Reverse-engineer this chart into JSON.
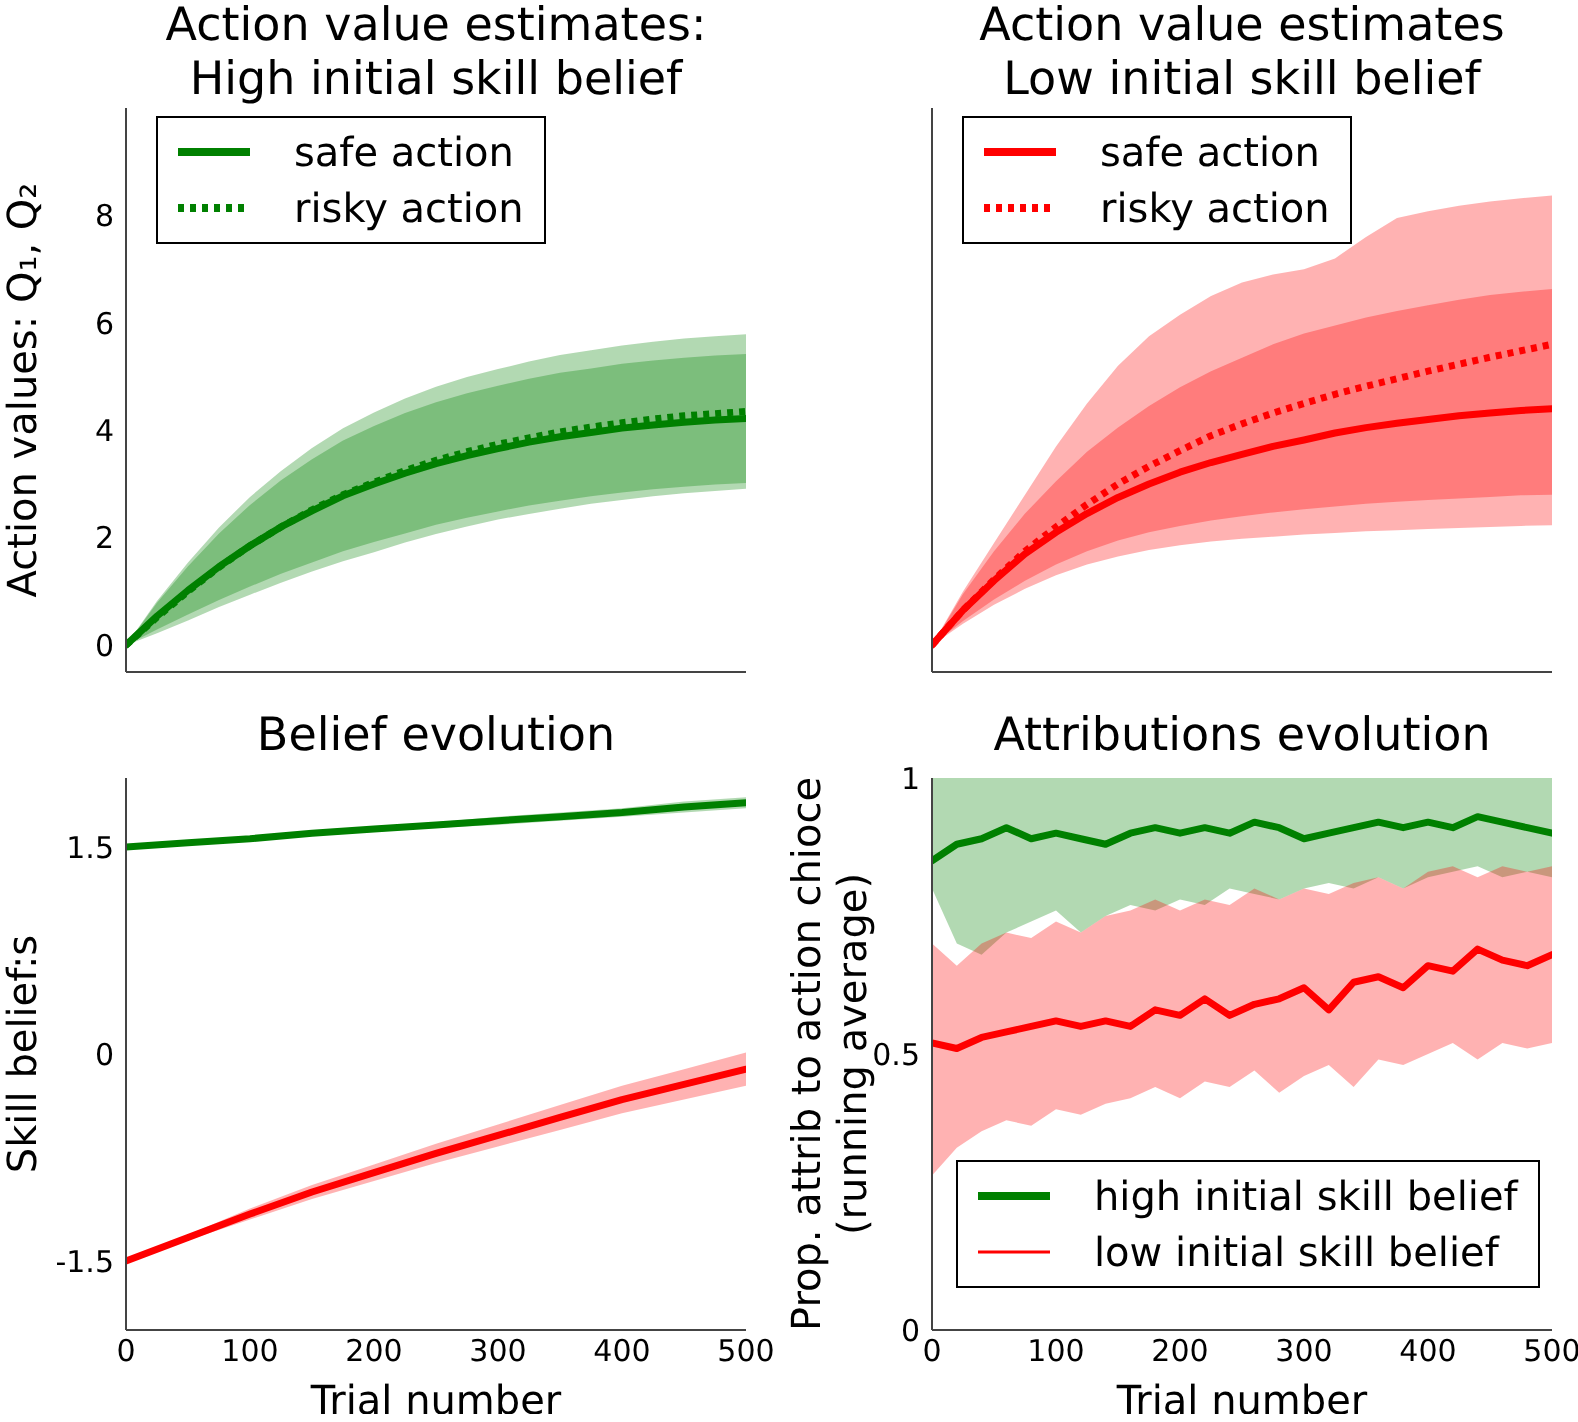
{
  "chart_data": [
    {
      "type": "line",
      "title": "Action value estimates:\nHigh initial skill belief",
      "ylabel": "Action values: Q₁, Q₂",
      "x": [
        0,
        25,
        50,
        75,
        100,
        125,
        150,
        175,
        200,
        225,
        250,
        275,
        300,
        325,
        350,
        375,
        400,
        425,
        450,
        475,
        500
      ],
      "xlim": [
        0,
        500
      ],
      "ylim": [
        -0.5,
        10
      ],
      "yticks": [
        0,
        2,
        4,
        6,
        8
      ],
      "tick_labels": "y",
      "legend": "top left",
      "series": [
        {
          "name": "safe action",
          "color": "#008000",
          "line_style": "solid",
          "values": [
            0,
            0.54,
            1.02,
            1.46,
            1.85,
            2.2,
            2.5,
            2.78,
            3.0,
            3.2,
            3.38,
            3.53,
            3.66,
            3.78,
            3.88,
            3.96,
            4.04,
            4.1,
            4.15,
            4.19,
            4.22
          ],
          "lower": [
            0,
            0.29,
            0.57,
            0.84,
            1.09,
            1.33,
            1.54,
            1.75,
            1.92,
            2.08,
            2.24,
            2.37,
            2.49,
            2.6,
            2.69,
            2.77,
            2.84,
            2.9,
            2.95,
            2.99,
            3.02
          ],
          "upper": [
            0,
            0.79,
            1.47,
            2.08,
            2.61,
            3.07,
            3.46,
            3.81,
            4.08,
            4.32,
            4.52,
            4.69,
            4.83,
            4.96,
            5.07,
            5.15,
            5.24,
            5.3,
            5.35,
            5.39,
            5.42
          ]
        },
        {
          "name": "risky action",
          "color": "#008000",
          "line_style": "dotted",
          "values": [
            0,
            0.52,
            1.0,
            1.45,
            1.85,
            2.2,
            2.52,
            2.8,
            3.03,
            3.25,
            3.44,
            3.6,
            3.74,
            3.86,
            3.97,
            4.06,
            4.14,
            4.21,
            4.27,
            4.31,
            4.35
          ],
          "lower": [
            0,
            0.22,
            0.46,
            0.71,
            0.94,
            1.16,
            1.37,
            1.56,
            1.73,
            1.91,
            2.07,
            2.21,
            2.34,
            2.44,
            2.54,
            2.63,
            2.7,
            2.77,
            2.83,
            2.87,
            2.91
          ],
          "upper": [
            0,
            0.82,
            1.54,
            2.19,
            2.76,
            3.24,
            3.67,
            4.04,
            4.33,
            4.59,
            4.81,
            4.99,
            5.14,
            5.28,
            5.4,
            5.49,
            5.58,
            5.65,
            5.71,
            5.75,
            5.79
          ]
        }
      ]
    },
    {
      "type": "line",
      "title": "Action value estimates\nLow initial skill belief",
      "x": [
        0,
        25,
        50,
        75,
        100,
        125,
        150,
        175,
        200,
        225,
        250,
        275,
        300,
        325,
        350,
        375,
        400,
        425,
        450,
        475,
        500
      ],
      "xlim": [
        0,
        500
      ],
      "ylim": [
        -0.5,
        10
      ],
      "yticks": [
        0,
        2,
        4,
        6,
        8
      ],
      "tick_labels": false,
      "legend": "top left",
      "series": [
        {
          "name": "safe action",
          "color": "#ff0000",
          "line_style": "solid",
          "values": [
            0,
            0.65,
            1.2,
            1.7,
            2.1,
            2.45,
            2.75,
            3.0,
            3.22,
            3.4,
            3.55,
            3.7,
            3.82,
            3.95,
            4.05,
            4.13,
            4.2,
            4.27,
            4.32,
            4.37,
            4.4
          ],
          "lower": [
            0,
            0.4,
            0.75,
            1.05,
            1.3,
            1.5,
            1.65,
            1.77,
            1.86,
            1.93,
            1.98,
            2.02,
            2.06,
            2.09,
            2.12,
            2.14,
            2.16,
            2.18,
            2.2,
            2.22,
            2.23
          ],
          "upper": [
            0,
            0.95,
            1.75,
            2.45,
            3.05,
            3.6,
            4.05,
            4.45,
            4.8,
            5.1,
            5.35,
            5.6,
            5.8,
            5.95,
            6.1,
            6.22,
            6.33,
            6.43,
            6.52,
            6.58,
            6.63
          ]
        },
        {
          "name": "risky action",
          "color": "#ff0000",
          "line_style": "dotted",
          "values": [
            0,
            0.65,
            1.22,
            1.75,
            2.2,
            2.62,
            3.0,
            3.33,
            3.62,
            3.9,
            4.12,
            4.32,
            4.5,
            4.67,
            4.82,
            4.96,
            5.1,
            5.23,
            5.36,
            5.48,
            5.6
          ],
          "lower": [
            0,
            0.45,
            0.85,
            1.2,
            1.5,
            1.75,
            1.95,
            2.1,
            2.22,
            2.32,
            2.4,
            2.47,
            2.53,
            2.58,
            2.63,
            2.67,
            2.7,
            2.73,
            2.76,
            2.79,
            2.8
          ],
          "upper": [
            0,
            1.0,
            1.9,
            2.8,
            3.7,
            4.5,
            5.2,
            5.75,
            6.15,
            6.5,
            6.75,
            6.9,
            7.0,
            7.2,
            7.6,
            7.95,
            8.08,
            8.18,
            8.26,
            8.32,
            8.37
          ]
        }
      ]
    },
    {
      "type": "line",
      "title": "Belief evolution",
      "xlabel": "Trial number",
      "ylabel": "Skill belief:s",
      "x": [
        0,
        50,
        100,
        150,
        200,
        250,
        300,
        350,
        400,
        450,
        500
      ],
      "xlim": [
        0,
        500
      ],
      "xticks": [
        0,
        100,
        200,
        300,
        400,
        500
      ],
      "ylim": [
        -2,
        2
      ],
      "yticks": [
        -1.5,
        0,
        1.5
      ],
      "series": [
        {
          "color": "#008000",
          "values": [
            1.5,
            1.53,
            1.56,
            1.6,
            1.63,
            1.66,
            1.69,
            1.72,
            1.75,
            1.79,
            1.82
          ],
          "lower": [
            1.5,
            1.52,
            1.55,
            1.58,
            1.61,
            1.64,
            1.66,
            1.69,
            1.72,
            1.75,
            1.78
          ],
          "upper": [
            1.5,
            1.54,
            1.57,
            1.62,
            1.65,
            1.68,
            1.72,
            1.75,
            1.78,
            1.83,
            1.86
          ]
        },
        {
          "color": "#ff0000",
          "values": [
            -1.5,
            -1.33,
            -1.16,
            -1.0,
            -0.86,
            -0.72,
            -0.59,
            -0.46,
            -0.33,
            -0.22,
            -0.11
          ],
          "lower": [
            -1.5,
            -1.35,
            -1.2,
            -1.05,
            -0.92,
            -0.79,
            -0.67,
            -0.55,
            -0.43,
            -0.33,
            -0.23
          ],
          "upper": [
            -1.5,
            -1.31,
            -1.12,
            -0.95,
            -0.8,
            -0.65,
            -0.51,
            -0.37,
            -0.23,
            -0.11,
            0.01
          ]
        }
      ]
    },
    {
      "type": "line",
      "title": "Attributions evolution",
      "xlabel": "Trial number",
      "ylabel": "Prop. attrib to action chioce\n(running average)",
      "x": [
        0,
        20,
        40,
        60,
        80,
        100,
        120,
        140,
        160,
        180,
        200,
        220,
        240,
        260,
        280,
        300,
        320,
        340,
        360,
        380,
        400,
        420,
        440,
        460,
        480,
        500
      ],
      "xlim": [
        0,
        500
      ],
      "xticks": [
        0,
        100,
        200,
        300,
        400,
        500
      ],
      "ylim": [
        0,
        1
      ],
      "yticks": [
        0,
        0.5,
        1
      ],
      "legend": "bottom",
      "series": [
        {
          "name": "high initial skill belief",
          "color": "#008000",
          "values": [
            0.85,
            0.88,
            0.89,
            0.91,
            0.89,
            0.9,
            0.89,
            0.88,
            0.9,
            0.91,
            0.9,
            0.91,
            0.9,
            0.92,
            0.91,
            0.89,
            0.9,
            0.91,
            0.92,
            0.91,
            0.92,
            0.91,
            0.93,
            0.92,
            0.91,
            0.9
          ],
          "lower": [
            0.8,
            0.7,
            0.68,
            0.72,
            0.74,
            0.76,
            0.72,
            0.75,
            0.77,
            0.76,
            0.78,
            0.77,
            0.8,
            0.79,
            0.78,
            0.8,
            0.81,
            0.8,
            0.82,
            0.8,
            0.82,
            0.83,
            0.84,
            0.82,
            0.83,
            0.82
          ],
          "upper": [
            1,
            1,
            1,
            1,
            1,
            1,
            1,
            1,
            1,
            1,
            1,
            1,
            1,
            1,
            1,
            1,
            1,
            1,
            1,
            1,
            1,
            1,
            1,
            1,
            1,
            1
          ]
        },
        {
          "name": "low initial skill belief",
          "color": "#ff0000",
          "values": [
            0.52,
            0.51,
            0.53,
            0.54,
            0.55,
            0.56,
            0.55,
            0.56,
            0.55,
            0.58,
            0.57,
            0.6,
            0.57,
            0.59,
            0.6,
            0.62,
            0.58,
            0.63,
            0.64,
            0.62,
            0.66,
            0.65,
            0.69,
            0.67,
            0.66,
            0.68
          ],
          "lower": [
            0.28,
            0.33,
            0.36,
            0.38,
            0.37,
            0.4,
            0.39,
            0.41,
            0.42,
            0.44,
            0.42,
            0.45,
            0.44,
            0.47,
            0.43,
            0.46,
            0.48,
            0.44,
            0.49,
            0.48,
            0.5,
            0.52,
            0.49,
            0.52,
            0.51,
            0.52
          ],
          "upper": [
            0.7,
            0.66,
            0.7,
            0.72,
            0.71,
            0.74,
            0.72,
            0.75,
            0.76,
            0.78,
            0.76,
            0.78,
            0.77,
            0.8,
            0.78,
            0.8,
            0.79,
            0.81,
            0.82,
            0.8,
            0.83,
            0.84,
            0.82,
            0.84,
            0.83,
            0.84
          ]
        }
      ]
    }
  ]
}
